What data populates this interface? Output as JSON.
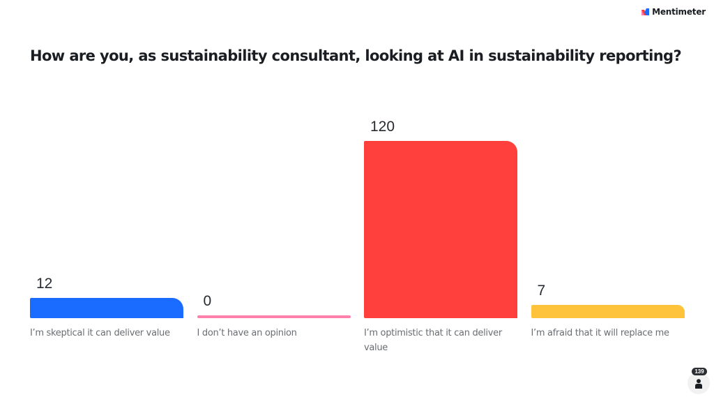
{
  "brand": {
    "name": "Mentimeter",
    "icon": "mentimeter-logo-icon"
  },
  "question": "How are you, as sustainability consultant, looking at AI in sustainability reporting?",
  "participants": {
    "count": "139",
    "icon": "person-icon"
  },
  "chart_data": {
    "type": "bar",
    "title": "How are you, as sustainability consultant, looking at AI in sustainability reporting?",
    "xlabel": "",
    "ylabel": "",
    "grid": false,
    "legend": "none",
    "ylim": [
      0,
      120
    ],
    "categories": [
      "I’m skeptical it can deliver value",
      "I don’t have an opinion",
      "I’m optimistic that it can deliver value",
      "I’m afraid that it will replace me"
    ],
    "values": [
      12,
      0,
      120,
      7
    ],
    "value_labels": [
      "12",
      "0",
      "120",
      "7"
    ],
    "colors": [
      "#196cff",
      "#ff80ab",
      "#ff403d",
      "#ffc33b"
    ]
  }
}
